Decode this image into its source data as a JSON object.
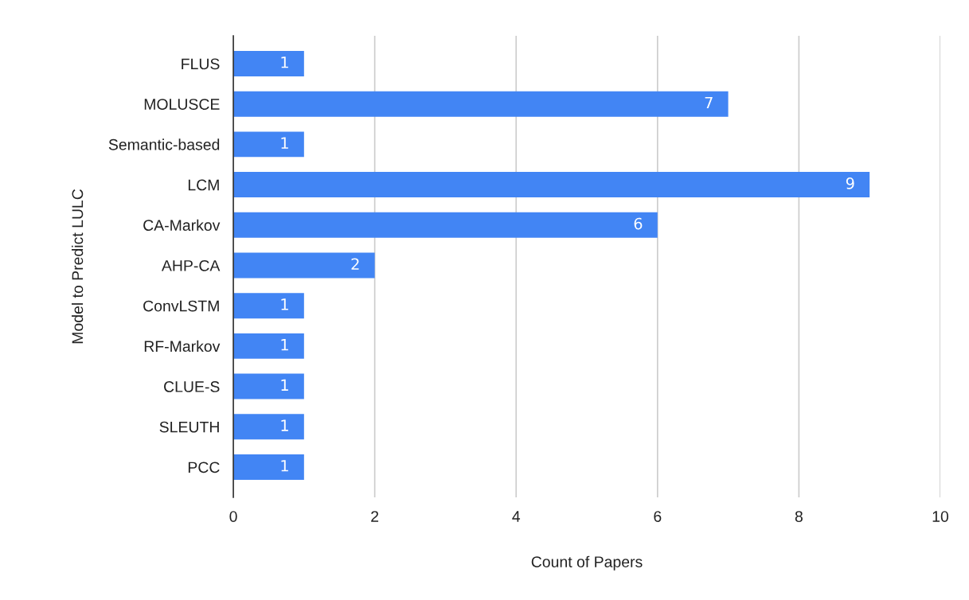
{
  "chart_data": {
    "type": "bar",
    "orientation": "horizontal",
    "categories": [
      "FLUS",
      "MOLUSCE",
      "Semantic-based",
      "LCM",
      "CA-Markov",
      "AHP-CA",
      "ConvLSTM",
      "RF-Markov",
      "CLUE-S",
      "SLEUTH",
      "PCC"
    ],
    "values": [
      1,
      7,
      1,
      9,
      6,
      2,
      1,
      1,
      1,
      1,
      1
    ],
    "color": "#4285f4",
    "xlim": [
      0,
      10
    ],
    "xticks": [
      0,
      2,
      4,
      6,
      8,
      10
    ],
    "grid": "x",
    "data_labels": true,
    "xlabel": "Count of Papers",
    "ylabel": "Model to Predict LULC"
  }
}
